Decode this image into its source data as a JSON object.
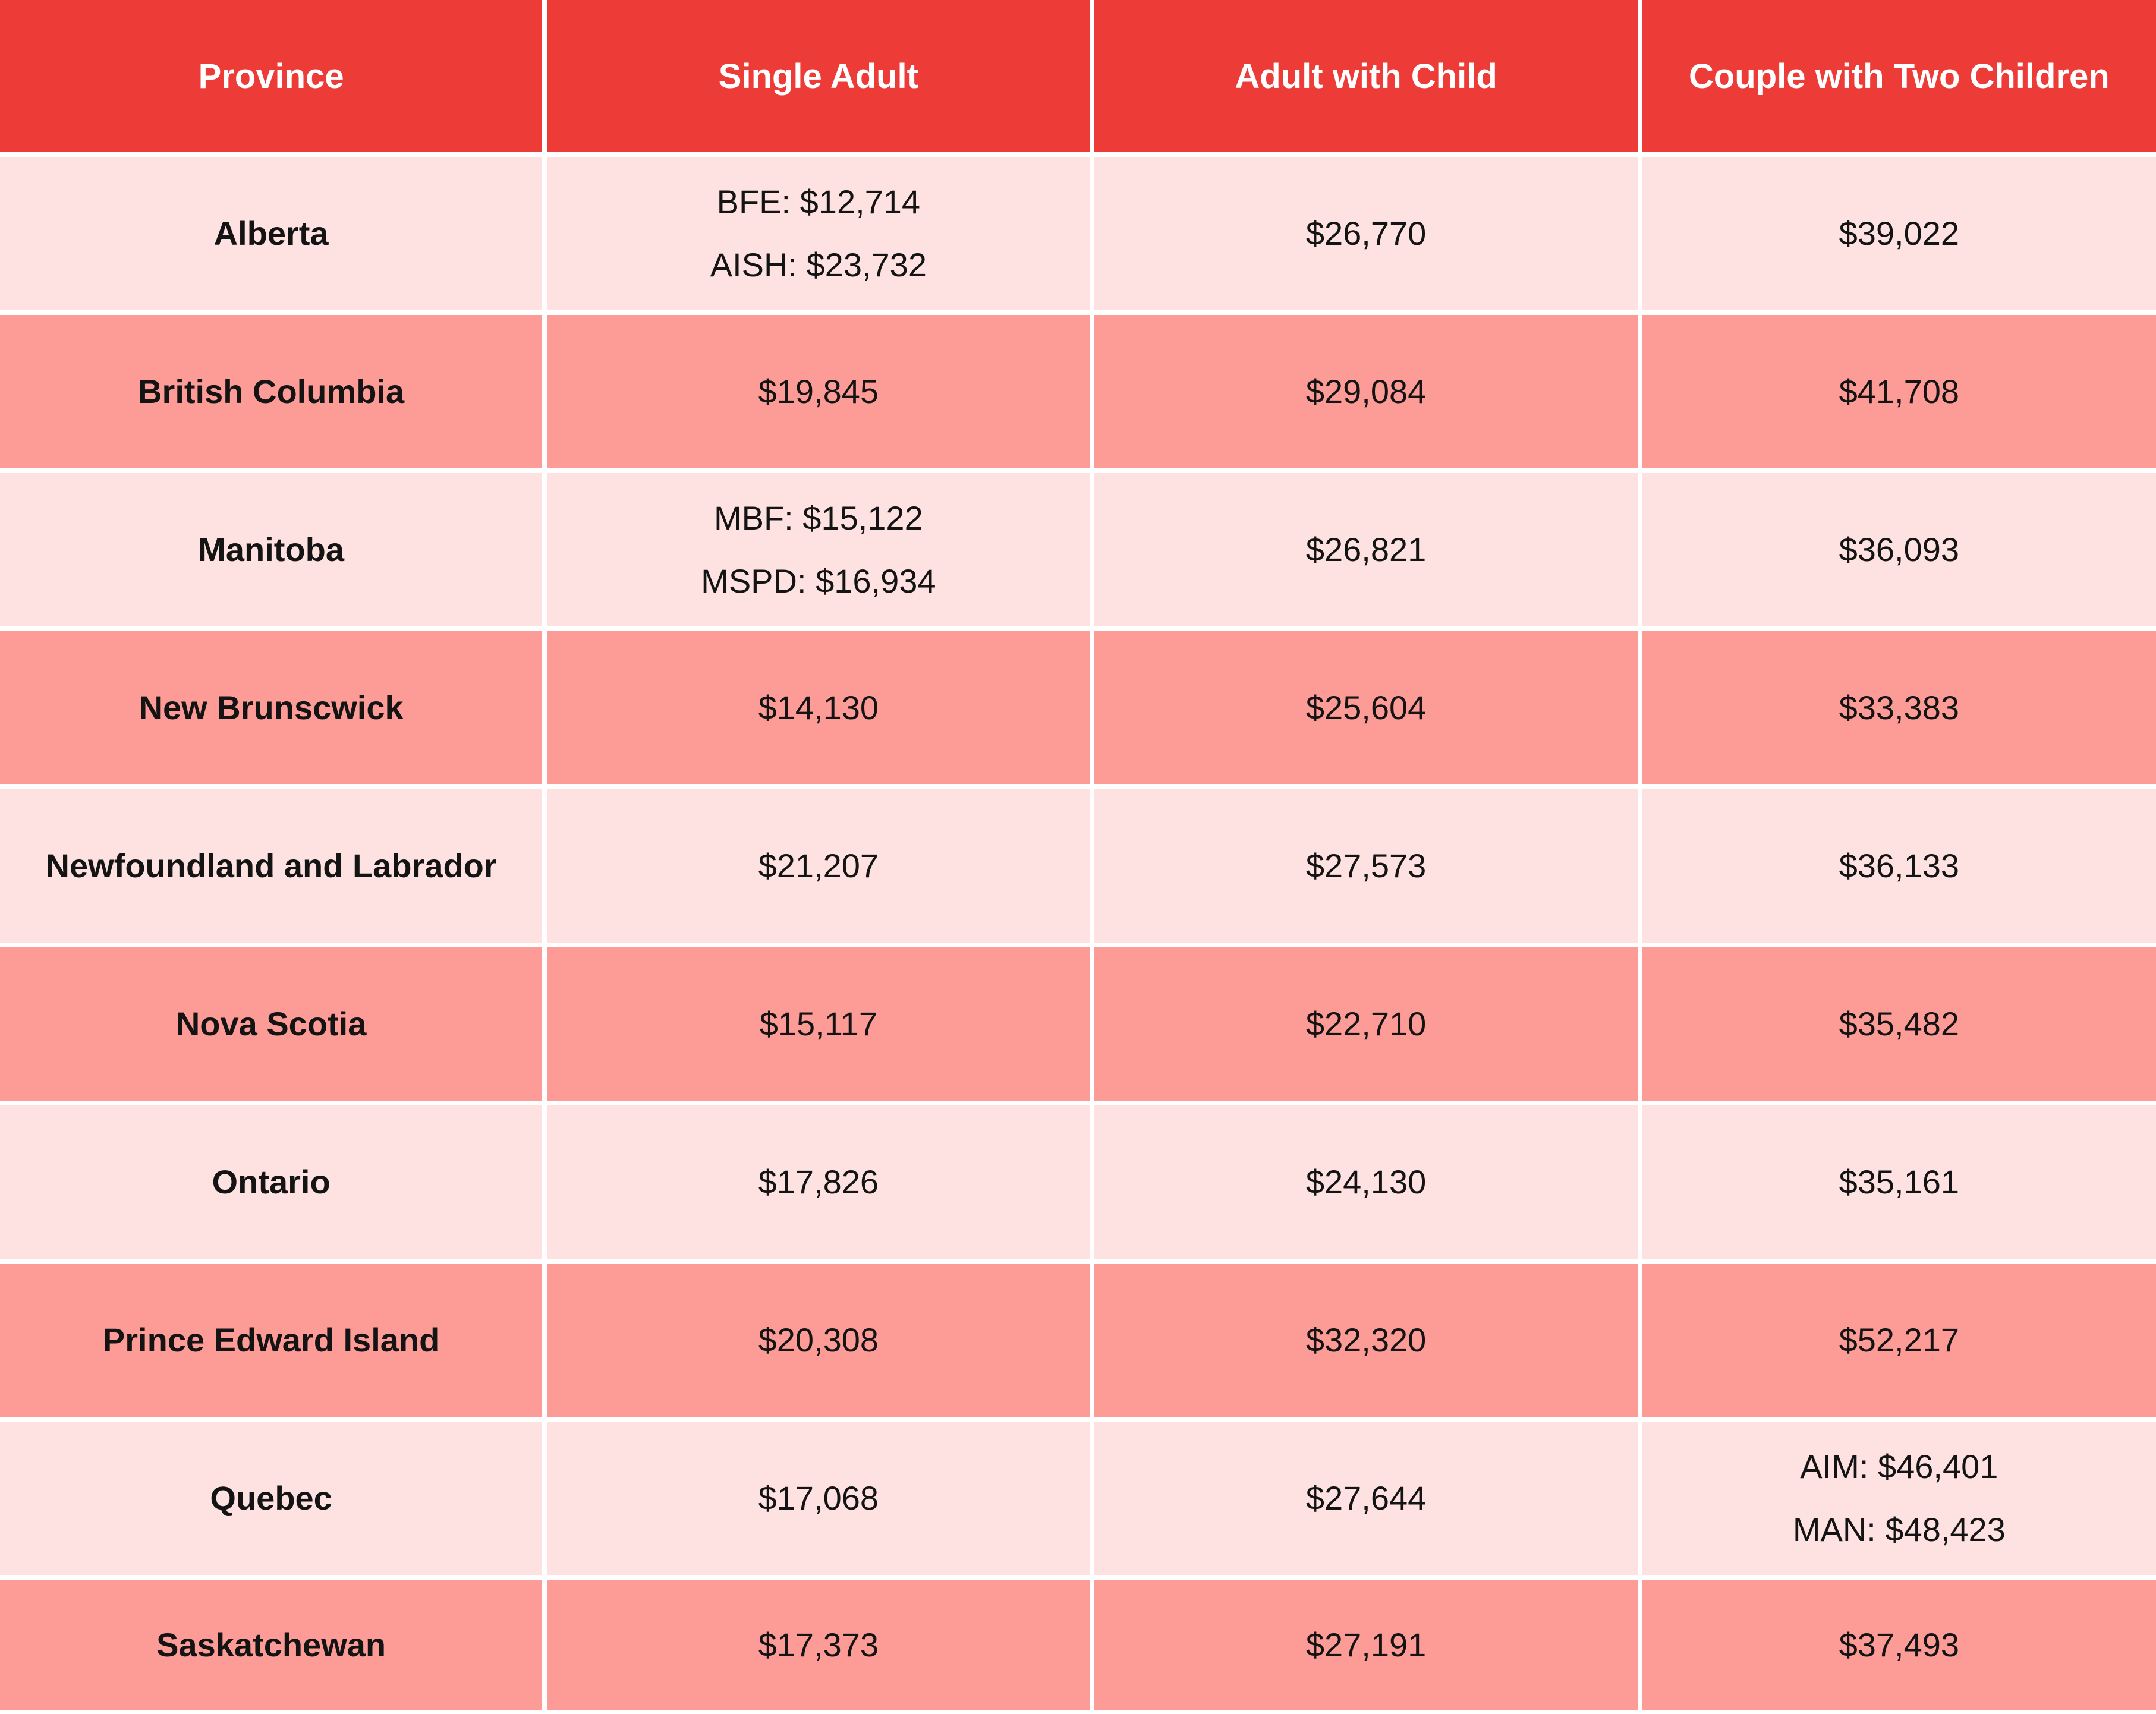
{
  "table": {
    "columns": [
      "Province",
      "Single Adult",
      "Adult with Child",
      "Couple with Two Children"
    ],
    "rows": [
      {
        "province": "Alberta",
        "single_adult": [
          "BFE: $12,714",
          "AISH: $23,732"
        ],
        "adult_with_child": [
          "$26,770"
        ],
        "couple_with_two_children": [
          "$39,022"
        ]
      },
      {
        "province": "British Columbia",
        "single_adult": [
          "$19,845"
        ],
        "adult_with_child": [
          "$29,084"
        ],
        "couple_with_two_children": [
          "$41,708"
        ]
      },
      {
        "province": "Manitoba",
        "single_adult": [
          "MBF: $15,122",
          "MSPD: $16,934"
        ],
        "adult_with_child": [
          "$26,821"
        ],
        "couple_with_two_children": [
          "$36,093"
        ]
      },
      {
        "province": "New Brunscwick",
        "single_adult": [
          "$14,130"
        ],
        "adult_with_child": [
          "$25,604"
        ],
        "couple_with_two_children": [
          "$33,383"
        ]
      },
      {
        "province": "Newfoundland and Labrador",
        "single_adult": [
          "$21,207"
        ],
        "adult_with_child": [
          "$27,573"
        ],
        "couple_with_two_children": [
          "$36,133"
        ]
      },
      {
        "province": "Nova Scotia",
        "single_adult": [
          "$15,117"
        ],
        "adult_with_child": [
          "$22,710"
        ],
        "couple_with_two_children": [
          "$35,482"
        ]
      },
      {
        "province": "Ontario",
        "single_adult": [
          "$17,826"
        ],
        "adult_with_child": [
          "$24,130"
        ],
        "couple_with_two_children": [
          "$35,161"
        ]
      },
      {
        "province": "Prince Edward Island",
        "single_adult": [
          "$20,308"
        ],
        "adult_with_child": [
          "$32,320"
        ],
        "couple_with_two_children": [
          "$52,217"
        ]
      },
      {
        "province": "Quebec",
        "single_adult": [
          "$17,068"
        ],
        "adult_with_child": [
          "$27,644"
        ],
        "couple_with_two_children": [
          "AIM: $46,401",
          "MAN: $48,423"
        ]
      },
      {
        "province": "Saskatchewan",
        "single_adult": [
          "$17,373"
        ],
        "adult_with_child": [
          "$27,191"
        ],
        "couple_with_two_children": [
          "$37,493"
        ]
      }
    ]
  },
  "colors": {
    "header_bg": "#ED3B38",
    "header_text": "#FFFFFF",
    "row_light": "#FDE2E1",
    "row_dark": "#FD9B97",
    "body_text": "#141414",
    "grid_gap": "#FFFFFF"
  },
  "chart_data": {
    "type": "table",
    "title": "",
    "columns": [
      "Province",
      "Single Adult",
      "Adult with Child",
      "Couple with Two Children"
    ],
    "rows": [
      [
        "Alberta",
        "BFE: $12,714; AISH: $23,732",
        "$26,770",
        "$39,022"
      ],
      [
        "British Columbia",
        "$19,845",
        "$29,084",
        "$41,708"
      ],
      [
        "Manitoba",
        "MBF: $15,122; MSPD: $16,934",
        "$26,821",
        "$36,093"
      ],
      [
        "New Brunscwick",
        "$14,130",
        "$25,604",
        "$33,383"
      ],
      [
        "Newfoundland and Labrador",
        "$21,207",
        "$27,573",
        "$36,133"
      ],
      [
        "Nova Scotia",
        "$15,117",
        "$22,710",
        "$35,482"
      ],
      [
        "Ontario",
        "$17,826",
        "$24,130",
        "$35,161"
      ],
      [
        "Prince Edward Island",
        "$20,308",
        "$32,320",
        "$52,217"
      ],
      [
        "Quebec",
        "$17,068",
        "$27,644",
        "AIM: $46,401; MAN: $48,423"
      ],
      [
        "Saskatchewan",
        "$17,373",
        "$27,191",
        "$37,493"
      ]
    ]
  }
}
